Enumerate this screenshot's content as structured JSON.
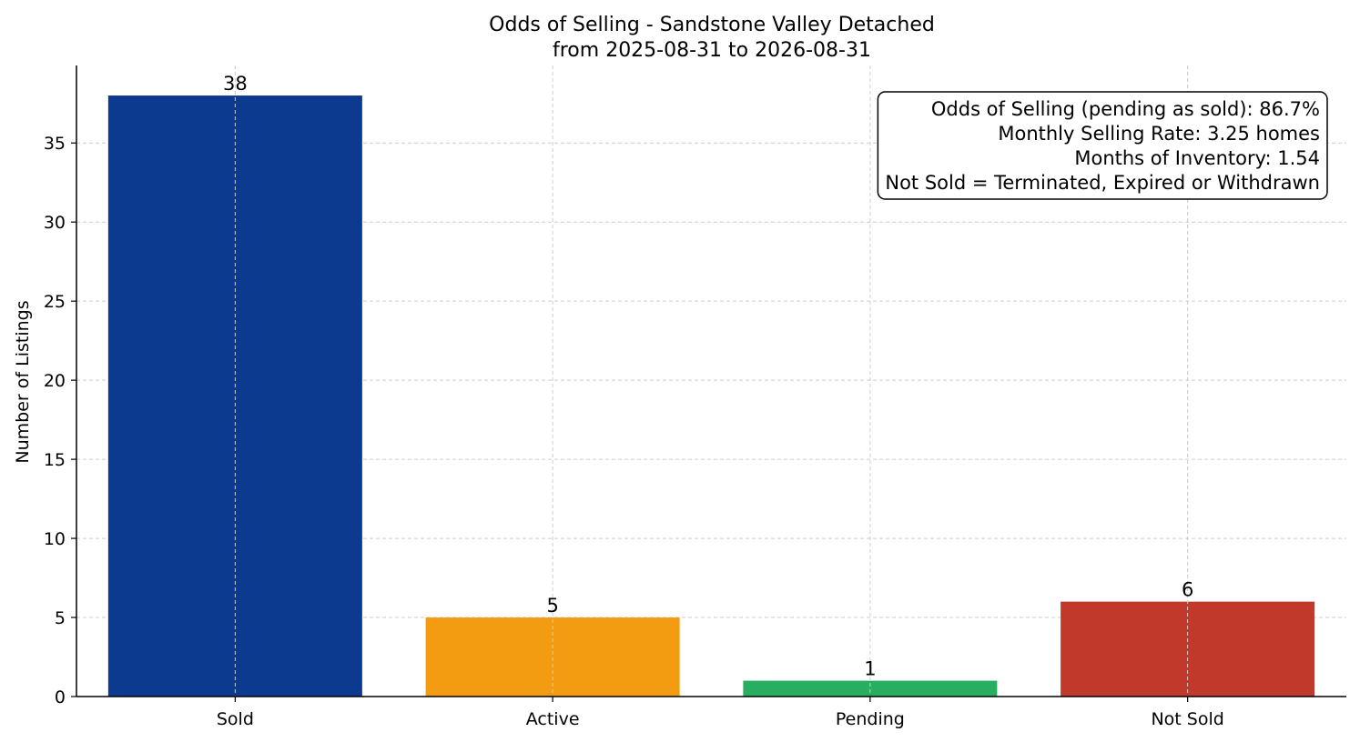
{
  "chart_data": {
    "type": "bar",
    "title": "Odds of Selling - Sandstone Valley Detached",
    "subtitle": "from 2025-08-31 to 2026-08-31",
    "xlabel": "",
    "ylabel": "Number of Listings",
    "categories": [
      "Sold",
      "Active",
      "Pending",
      "Not Sold"
    ],
    "values": [
      38,
      5,
      1,
      6
    ],
    "colors": [
      "#0b3a8f",
      "#f39c12",
      "#27ae60",
      "#c0392b"
    ],
    "data_labels": [
      "38",
      "5",
      "1",
      "6"
    ],
    "ylim": [
      0,
      39.9
    ],
    "yticks": [
      0,
      5,
      10,
      15,
      20,
      25,
      30,
      35
    ],
    "ytick_labels": [
      "0",
      "5",
      "10",
      "15",
      "20",
      "25",
      "30",
      "35"
    ],
    "grid": true,
    "info_box": {
      "placement": "top-right",
      "lines": [
        "Odds of Selling (pending as sold): 86.7%",
        "Monthly Selling Rate: 3.25 homes",
        "Months of Inventory: 1.54",
        "Not Sold = Terminated, Expired or Withdrawn"
      ]
    }
  }
}
